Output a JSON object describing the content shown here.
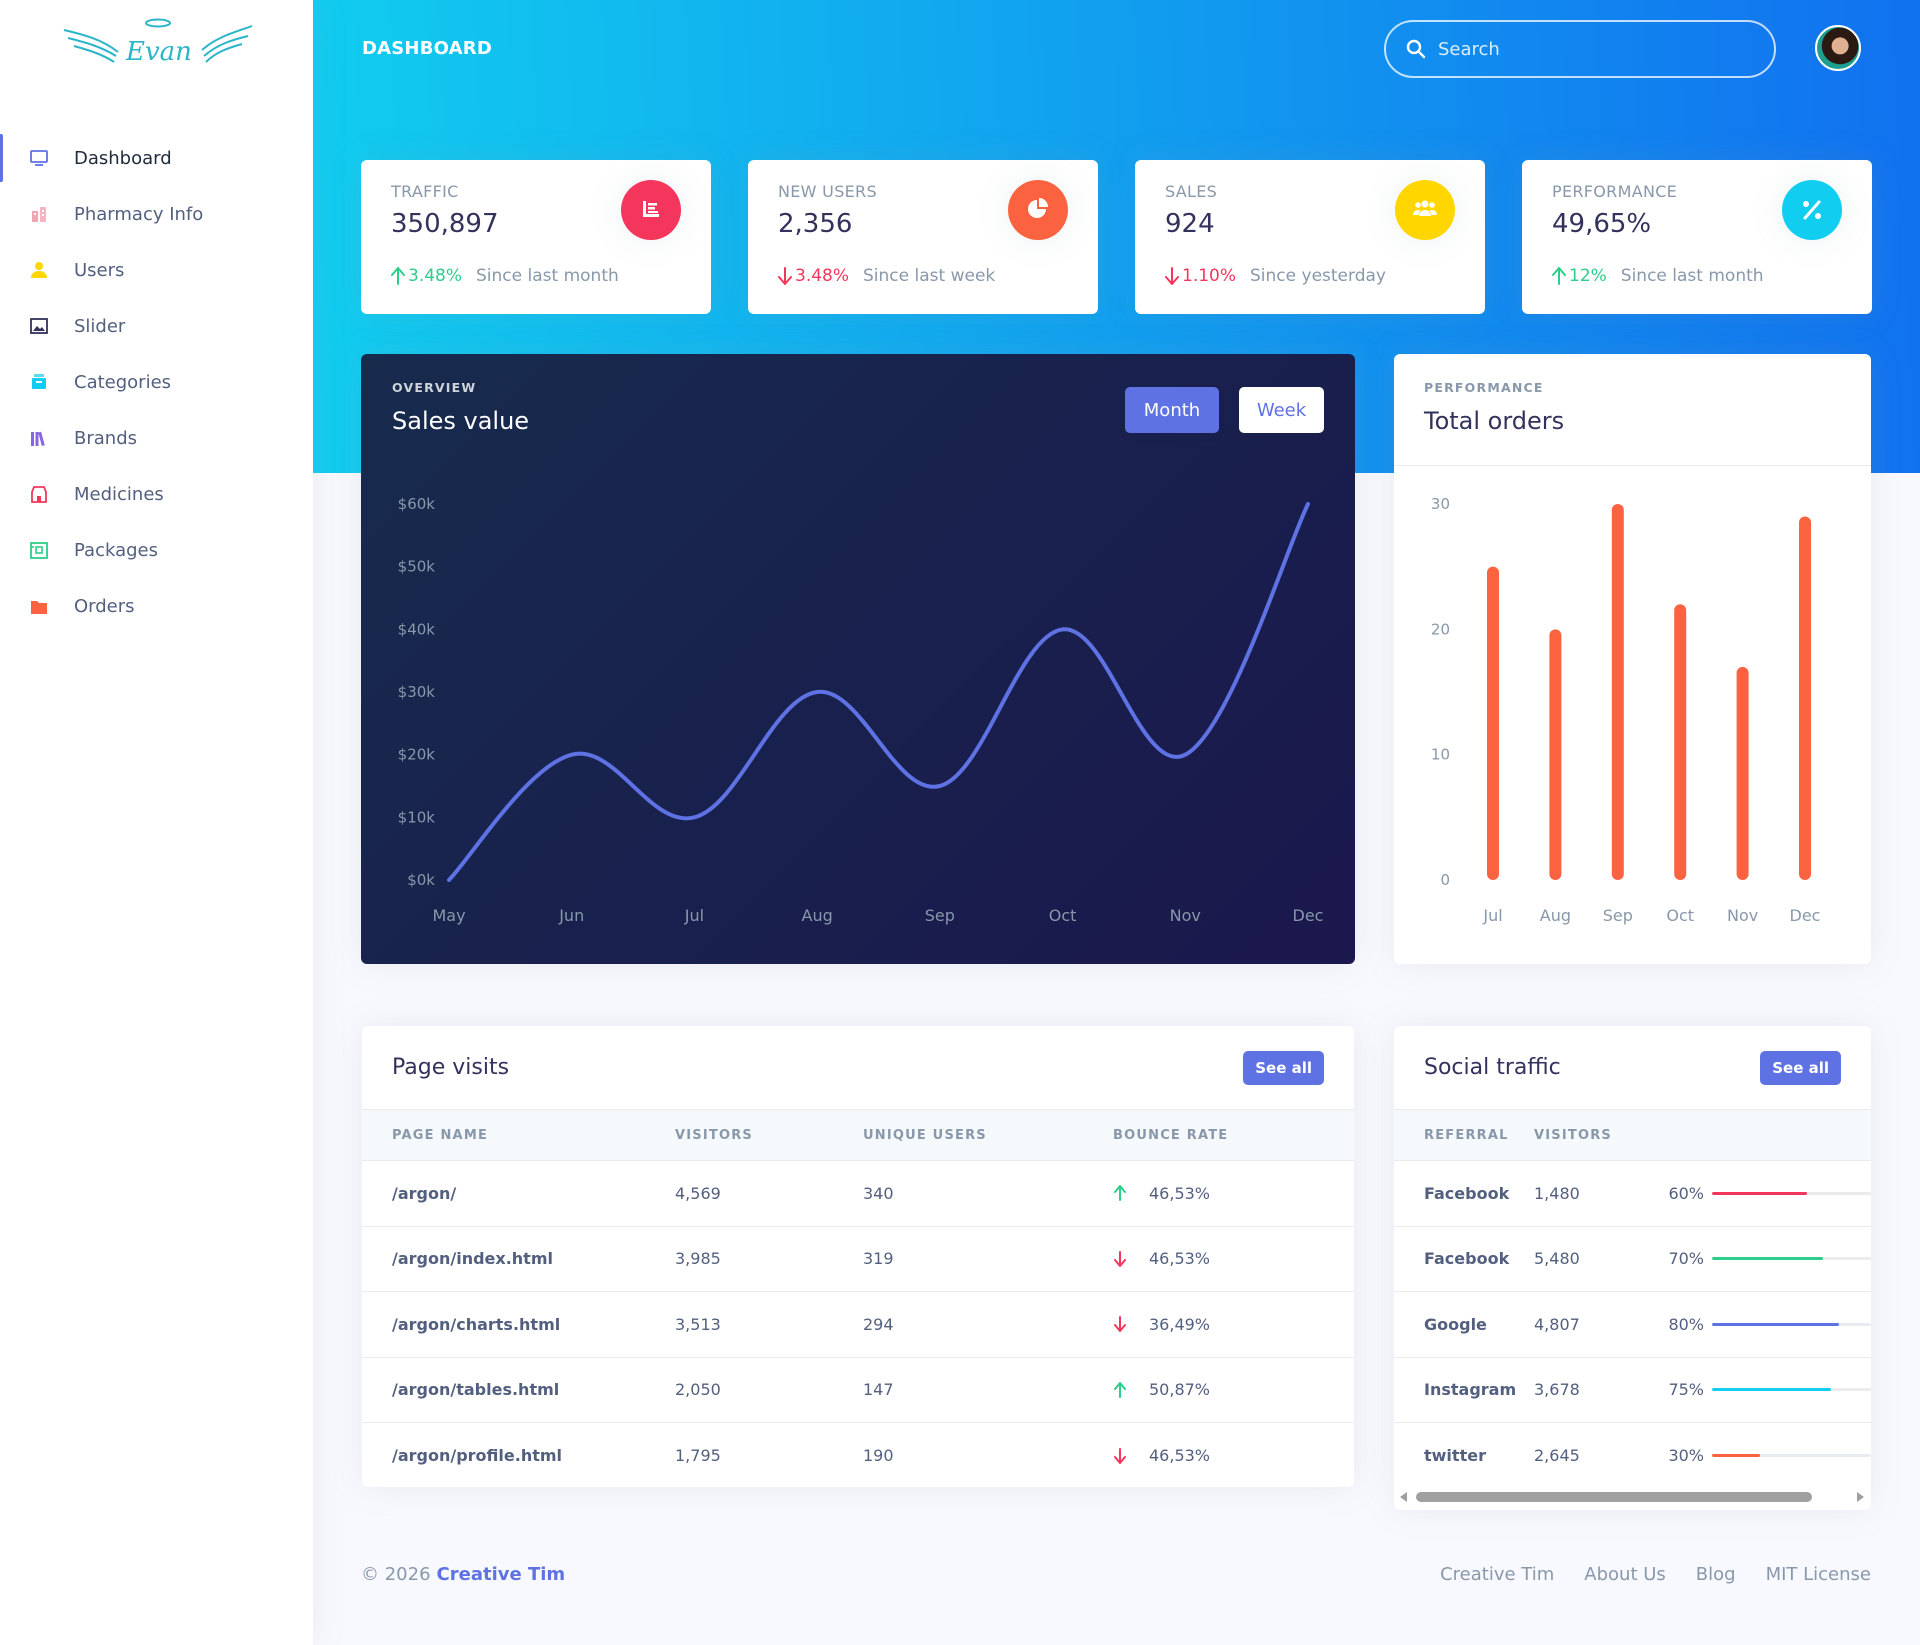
{
  "brand": {
    "logo_text": "Evan"
  },
  "sidebar": {
    "items": [
      {
        "label": "Dashboard",
        "icon": "monitor-icon",
        "color": "#5e72e4"
      },
      {
        "label": "Pharmacy Info",
        "icon": "building-icon",
        "color": "#f3a4b5"
      },
      {
        "label": "Users",
        "icon": "user-icon",
        "color": "#ffd600"
      },
      {
        "label": "Slider",
        "icon": "image-icon",
        "color": "#32325d"
      },
      {
        "label": "Categories",
        "icon": "category-icon",
        "color": "#11cdef"
      },
      {
        "label": "Brands",
        "icon": "books-icon",
        "color": "#8965e0"
      },
      {
        "label": "Medicines",
        "icon": "store-icon",
        "color": "#f5365c"
      },
      {
        "label": "Packages",
        "icon": "package-icon",
        "color": "#2dce89"
      },
      {
        "label": "Orders",
        "icon": "folder-icon",
        "color": "#fb6340"
      }
    ]
  },
  "header": {
    "title": "DASHBOARD",
    "search_placeholder": "Search"
  },
  "stats": [
    {
      "title": "TRAFFIC",
      "value": "350,897",
      "change": "3.48%",
      "direction": "up",
      "since": "Since last month",
      "icon": "chart-bar-icon",
      "color": "#f5365c"
    },
    {
      "title": "NEW USERS",
      "value": "2,356",
      "change": "3.48%",
      "direction": "down",
      "since": "Since last week",
      "icon": "chart-pie-icon",
      "color": "#fb6340"
    },
    {
      "title": "SALES",
      "value": "924",
      "change": "1.10%",
      "direction": "down",
      "since": "Since yesterday",
      "icon": "users-icon",
      "color": "#ffd600"
    },
    {
      "title": "PERFORMANCE",
      "value": "49,65%",
      "change": "12%",
      "direction": "up",
      "since": "Since last month",
      "icon": "percent-icon",
      "color": "#11cdef"
    }
  ],
  "sales_card": {
    "overline": "OVERVIEW",
    "title": "Sales value",
    "btn_month": "Month",
    "btn_week": "Week"
  },
  "orders_card": {
    "overline": "PERFORMANCE",
    "title": "Total orders"
  },
  "chart_data": [
    {
      "type": "line",
      "title": "Sales value",
      "x": [
        "May",
        "Jun",
        "Jul",
        "Aug",
        "Sep",
        "Oct",
        "Nov",
        "Dec"
      ],
      "y": [
        0,
        20,
        10,
        30,
        15,
        40,
        20,
        60
      ],
      "yticks": [
        "$0k",
        "$10k",
        "$20k",
        "$30k",
        "$40k",
        "$50k",
        "$60k"
      ],
      "ylim": [
        0,
        60
      ],
      "color": "#5e72e4"
    },
    {
      "type": "bar",
      "title": "Total orders",
      "categories": [
        "Jul",
        "Aug",
        "Sep",
        "Oct",
        "Nov",
        "Dec"
      ],
      "values": [
        25,
        20,
        30,
        22,
        17,
        29
      ],
      "yticks": [
        "0",
        "10",
        "20",
        "30"
      ],
      "ylim": [
        0,
        30
      ],
      "color": "#fb6340"
    }
  ],
  "page_visits": {
    "title": "Page visits",
    "see_all": "See all",
    "headers": [
      "PAGE NAME",
      "VISITORS",
      "UNIQUE USERS",
      "BOUNCE RATE"
    ],
    "rows": [
      {
        "page": "/argon/",
        "visitors": "4,569",
        "unique": "340",
        "bounce": "46,53%",
        "trend": "up"
      },
      {
        "page": "/argon/index.html",
        "visitors": "3,985",
        "unique": "319",
        "bounce": "46,53%",
        "trend": "down"
      },
      {
        "page": "/argon/charts.html",
        "visitors": "3,513",
        "unique": "294",
        "bounce": "36,49%",
        "trend": "down"
      },
      {
        "page": "/argon/tables.html",
        "visitors": "2,050",
        "unique": "147",
        "bounce": "50,87%",
        "trend": "up"
      },
      {
        "page": "/argon/profile.html",
        "visitors": "1,795",
        "unique": "190",
        "bounce": "46,53%",
        "trend": "down"
      }
    ]
  },
  "social_traffic": {
    "title": "Social traffic",
    "see_all": "See all",
    "headers": [
      "REFERRAL",
      "VISITORS"
    ],
    "rows": [
      {
        "referral": "Facebook",
        "visitors": "1,480",
        "percent": "60%",
        "value": 60,
        "color": "#f5365c"
      },
      {
        "referral": "Facebook",
        "visitors": "5,480",
        "percent": "70%",
        "value": 70,
        "color": "#2dce89"
      },
      {
        "referral": "Google",
        "visitors": "4,807",
        "percent": "80%",
        "value": 80,
        "color": "#5e72e4"
      },
      {
        "referral": "Instagram",
        "visitors": "3,678",
        "percent": "75%",
        "value": 75,
        "color": "#11cdef"
      },
      {
        "referral": "twitter",
        "visitors": "2,645",
        "percent": "30%",
        "value": 30,
        "color": "#fb6340"
      }
    ]
  },
  "footer": {
    "copyright": "© 2026",
    "company": "Creative Tim",
    "links": [
      "Creative Tim",
      "About Us",
      "Blog",
      "MIT License"
    ]
  }
}
